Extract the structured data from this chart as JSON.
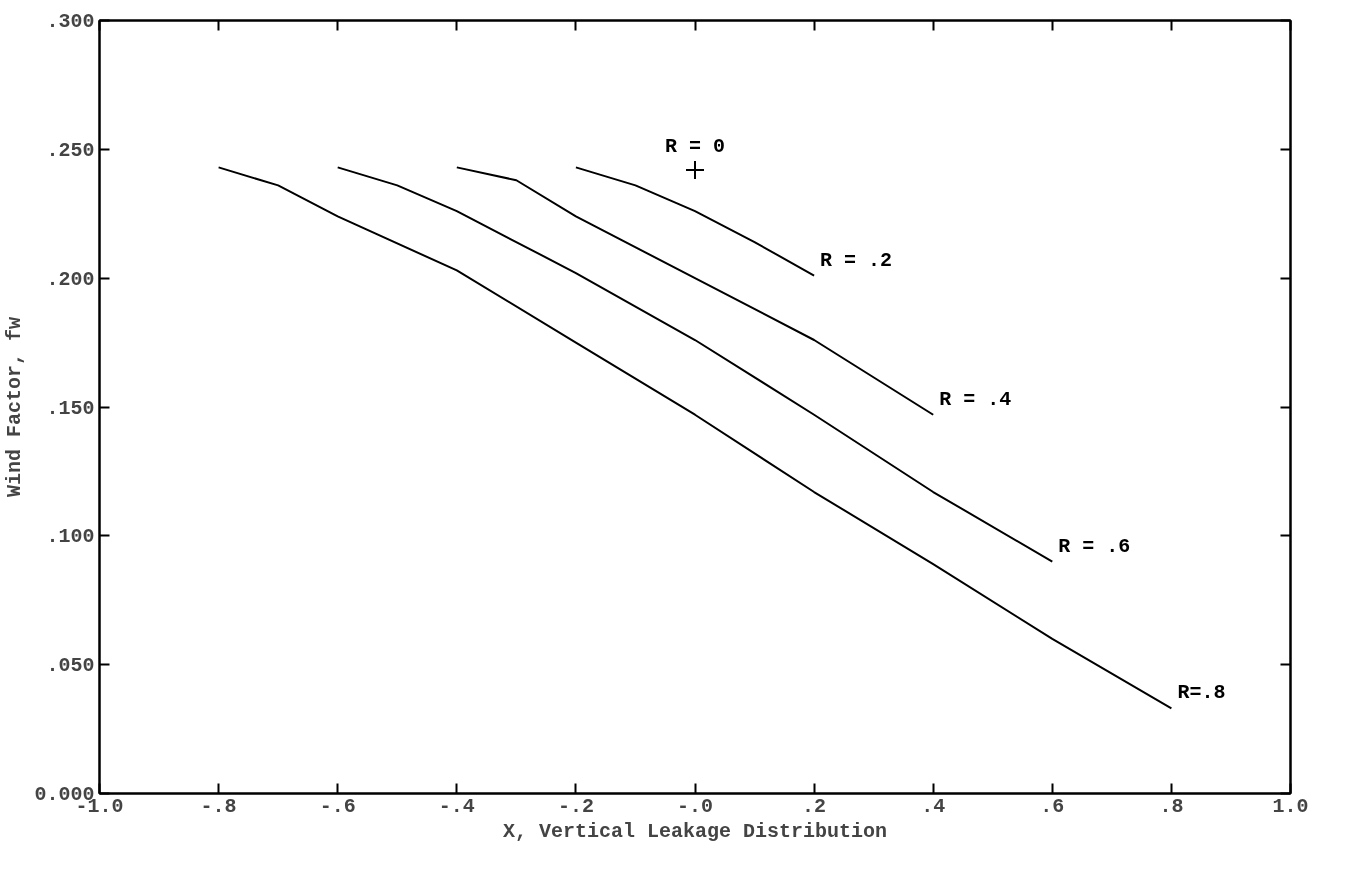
{
  "chart_data": {
    "type": "line",
    "xlabel": "X, Vertical Leakage Distribution",
    "ylabel": "Wind Factor, fw",
    "xlim": [
      -1.0,
      1.0
    ],
    "ylim": [
      0.0,
      0.3
    ],
    "xticks": [
      {
        "value": -1.0,
        "label": "-1.0"
      },
      {
        "value": -0.8,
        "label": "-.8"
      },
      {
        "value": -0.6,
        "label": "-.6"
      },
      {
        "value": -0.4,
        "label": "-.4"
      },
      {
        "value": -0.2,
        "label": "-.2"
      },
      {
        "value": 0.0,
        "label": "-.0"
      },
      {
        "value": 0.2,
        "label": ".2"
      },
      {
        "value": 0.4,
        "label": ".4"
      },
      {
        "value": 0.6,
        "label": ".6"
      },
      {
        "value": 0.8,
        "label": ".8"
      },
      {
        "value": 1.0,
        "label": "1.0"
      }
    ],
    "yticks": [
      {
        "value": 0.0,
        "label": "0.000"
      },
      {
        "value": 0.05,
        "label": ".050"
      },
      {
        "value": 0.1,
        "label": ".100"
      },
      {
        "value": 0.15,
        "label": ".150"
      },
      {
        "value": 0.2,
        "label": ".200"
      },
      {
        "value": 0.25,
        "label": ".250"
      },
      {
        "value": 0.3,
        "label": ".300"
      }
    ],
    "line_style": "solid",
    "marker": "none",
    "series": [
      {
        "name": "R = 0",
        "type": "scatter",
        "marker": "cross",
        "color": "#000000",
        "x": [
          0.0
        ],
        "values": [
          0.242
        ]
      },
      {
        "name": "R = .2",
        "color": "#000000",
        "x": [
          -0.2,
          -0.1,
          0.0,
          0.1,
          0.2
        ],
        "values": [
          0.243,
          0.236,
          0.226,
          0.214,
          0.201
        ]
      },
      {
        "name": "R = .4",
        "color": "#000000",
        "x": [
          -0.4,
          -0.3,
          -0.2,
          0.0,
          0.2,
          0.4
        ],
        "values": [
          0.243,
          0.238,
          0.224,
          0.2,
          0.176,
          0.147
        ]
      },
      {
        "name": "R = .6",
        "color": "#000000",
        "x": [
          -0.6,
          -0.5,
          -0.4,
          -0.2,
          0.0,
          0.2,
          0.4,
          0.6
        ],
        "values": [
          0.243,
          0.236,
          0.226,
          0.202,
          0.176,
          0.147,
          0.117,
          0.09
        ]
      },
      {
        "name": "R=.8",
        "color": "#000000",
        "x": [
          -0.8,
          -0.7,
          -0.6,
          -0.4,
          -0.2,
          0.0,
          0.2,
          0.4,
          0.6,
          0.8
        ],
        "values": [
          0.243,
          0.236,
          0.224,
          0.203,
          0.175,
          0.147,
          0.117,
          0.089,
          0.06,
          0.033
        ]
      }
    ]
  }
}
